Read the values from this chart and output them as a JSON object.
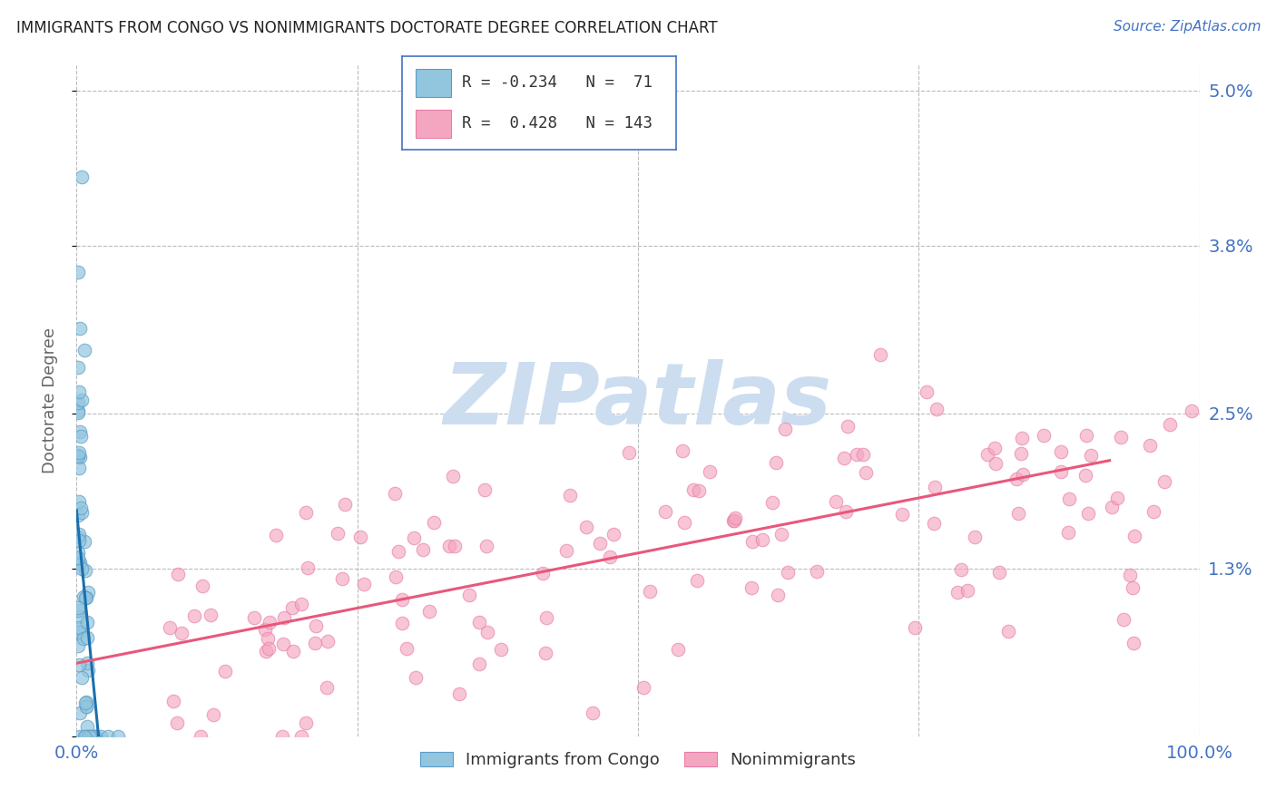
{
  "title": "IMMIGRANTS FROM CONGO VS NONIMMIGRANTS DOCTORATE DEGREE CORRELATION CHART",
  "source": "Source: ZipAtlas.com",
  "ylabel": "Doctorate Degree",
  "ytick_vals": [
    0.0,
    0.013,
    0.025,
    0.038,
    0.05
  ],
  "ytick_labels": [
    "",
    "1.3%",
    "2.5%",
    "3.8%",
    "5.0%"
  ],
  "xtick_vals": [
    0.0,
    0.25,
    0.5,
    0.75,
    1.0
  ],
  "xtick_labels": [
    "0.0%",
    "",
    "",
    "",
    "100.0%"
  ],
  "xlim": [
    0.0,
    1.0
  ],
  "ylim": [
    0.0,
    0.052
  ],
  "blue_color": "#92c5de",
  "pink_color": "#f4a6c0",
  "blue_edge_color": "#5a9dc8",
  "pink_edge_color": "#e87da8",
  "blue_line_color": "#1a6faf",
  "pink_line_color": "#e8587a",
  "title_color": "#222222",
  "axis_label_color": "#4472c4",
  "ylabel_color": "#666666",
  "watermark_text": "ZIPatlas",
  "watermark_color": "#ccddf0",
  "background_color": "#ffffff",
  "grid_color": "#bbbbbb",
  "legend_box_color": "#4472c4",
  "legend_r1_color": "#c0392b",
  "legend_r2_color": "#c0392b",
  "source_color": "#4472c4"
}
